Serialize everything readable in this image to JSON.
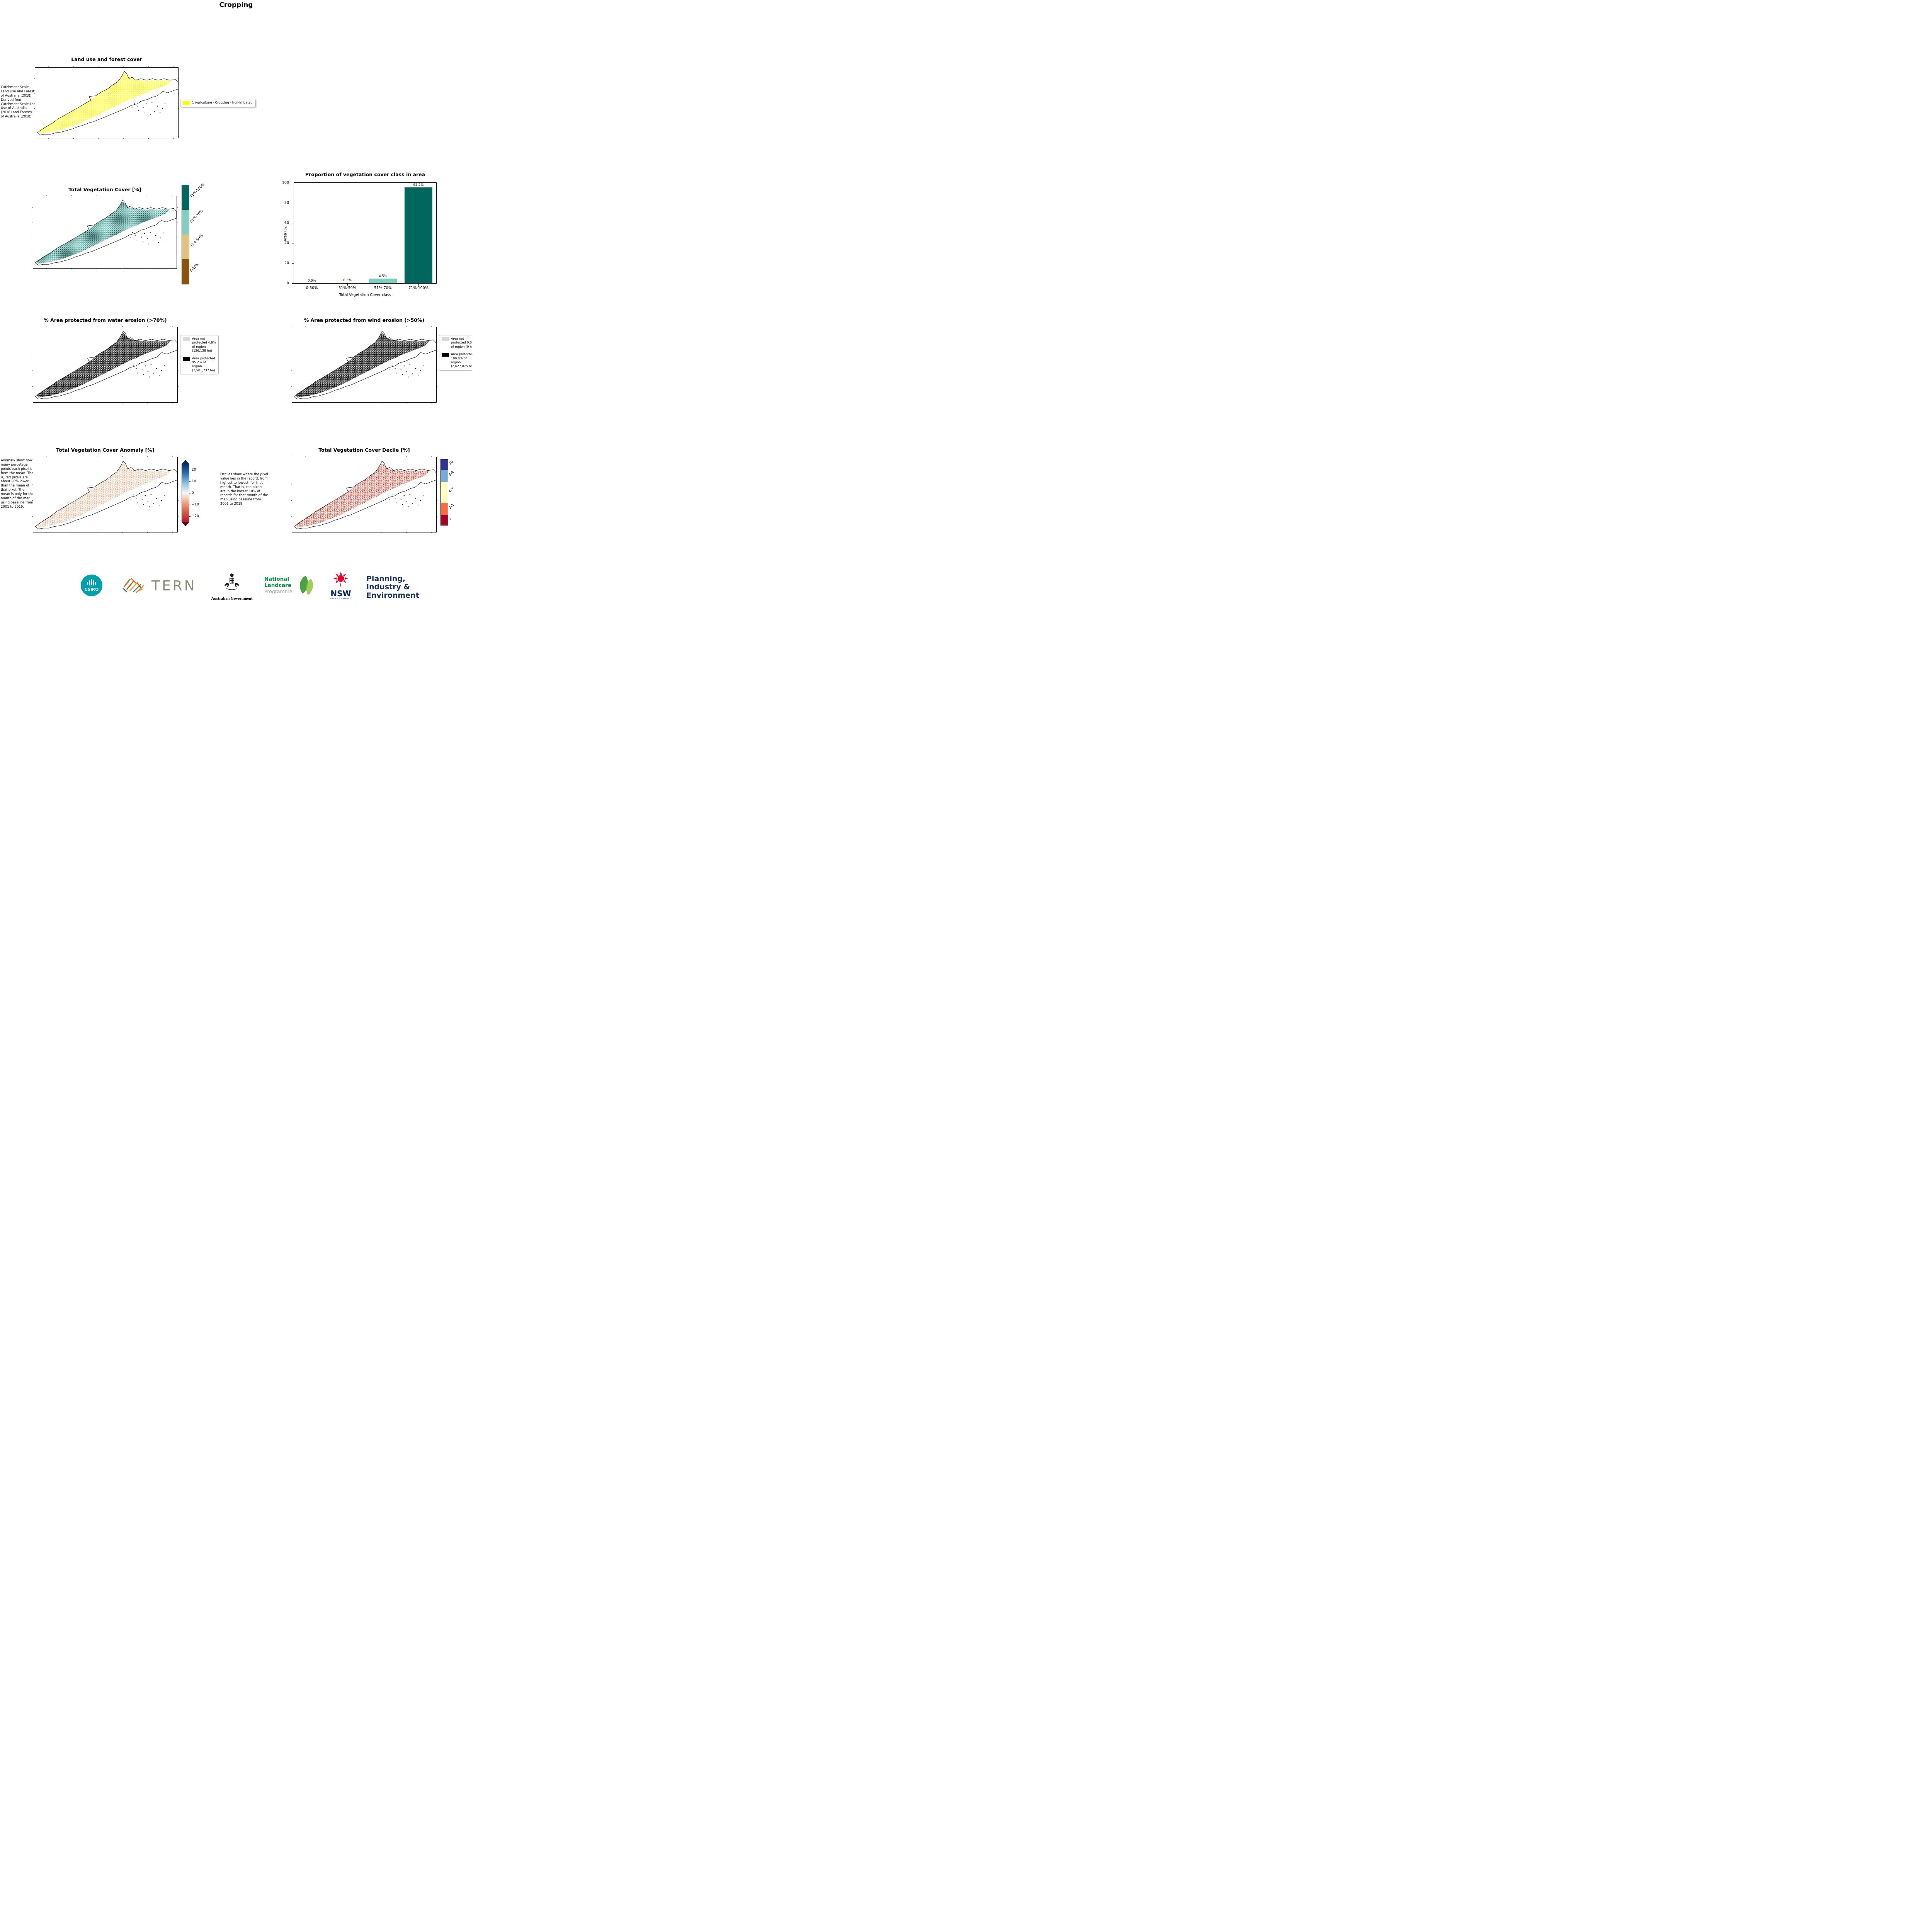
{
  "page": {
    "title": "Cropping"
  },
  "panels": {
    "landuse": {
      "title": "Land use and forest cover",
      "side_note": " Catchment Scale\nLand Use and Forests\nof Australia (2018)\nDerived from\nCatchment Scale Land\nUse of Australia\n(2018) and Forests\nof Australia (2018)",
      "legend": [
        {
          "color": "#ffff00",
          "label": "1 Agriculture - Cropping - Non-irrigated"
        }
      ]
    },
    "veg_cover": {
      "title": "Total Vegetation Cover [%]",
      "colorbar": [
        {
          "label": "71%-100%",
          "color": "#01665e"
        },
        {
          "label": "51%-70%",
          "color": "#80cdc1"
        },
        {
          "label": "31%-50%",
          "color": "#dfc27d"
        },
        {
          "label": "0-30%",
          "color": "#8c510a"
        }
      ]
    },
    "water_erosion": {
      "title": "% Area protected from water erosion (>70%)",
      "legend": [
        {
          "color": "#d9d9d9",
          "label": "Area not protected 4.8% of region (126,138 ha)"
        },
        {
          "color": "#000000",
          "label": "Area protected 95.2% of region (2,501,737 ha)"
        }
      ]
    },
    "wind_erosion": {
      "title": "% Area protected from wind erosion (>50%)",
      "legend": [
        {
          "color": "#d9d9d9",
          "label": "Area not protected 0.0% of region (0 ha)"
        },
        {
          "color": "#000000",
          "label": "Area protected 100.0% of region (2,627,875 ha)"
        }
      ]
    },
    "anomaly": {
      "title": "Total Vegetation Cover Anomaly [%]",
      "side_note": "Anomaly show how many percetage points each pixel is from the mean. That is, red pixels are about 20% lower than the mean of that pixel. The mean is only for the month of the map using baseline from 2001 to 2019.",
      "colorbar_ticks": [
        {
          "label": "20",
          "value": 20
        },
        {
          "label": "10",
          "value": 10
        },
        {
          "label": "0",
          "value": 0
        },
        {
          "label": "−10",
          "value": -10
        },
        {
          "label": "−20",
          "value": -20
        }
      ]
    },
    "decile": {
      "title": "Total Vegetation Cover Decile [%]",
      "side_note": "Deciles show where the pixel value lies in the record, from highest to lowest, for that month. That is, red pixels are in the lowest 10% of records for that month of the map using baseline from 2001 to 2019.",
      "colorbar": [
        {
          "label": "10",
          "color": "#313695",
          "span": 1
        },
        {
          "label": "8-9",
          "color": "#74add1",
          "span": 1.2
        },
        {
          "label": "4-7",
          "color": "#ffffbf",
          "span": 2
        },
        {
          "label": "2-3",
          "color": "#f46d43",
          "span": 1.2
        },
        {
          "label": "1",
          "color": "#a50026",
          "span": 1
        }
      ]
    }
  },
  "chart_data": {
    "type": "bar",
    "title": "Proportion of vegetation cover class in area",
    "categories": [
      "0-30%",
      "31%-50%",
      "51%-70%",
      "71%-100%"
    ],
    "values": [
      0.0,
      0.3,
      4.5,
      95.2
    ],
    "value_labels": [
      "0.0%",
      "0.3%",
      "4.5%",
      "95.2%"
    ],
    "bar_colors": [
      "#8c510a",
      "#dfc27d",
      "#80cdc1",
      "#01665e"
    ],
    "xlabel": "Total Vegetation Cover class",
    "ylabel": "Area (%)",
    "ylim": [
      0,
      100
    ],
    "yticks": [
      0,
      20,
      40,
      60,
      80,
      100
    ],
    "grid": false,
    "legend_position": "none"
  },
  "footer": {
    "csiro": "CSIRO",
    "tern": "TERN",
    "aus_gov": "Australian Government",
    "landcare_line1": "National",
    "landcare_line2": "Landcare",
    "landcare_line3": "Programme",
    "nsw": "NSW",
    "nsw_sub": "GOVERNMENT",
    "dept_line1": "Planning,",
    "dept_line2": "Industry &",
    "dept_line3": "Environment"
  }
}
